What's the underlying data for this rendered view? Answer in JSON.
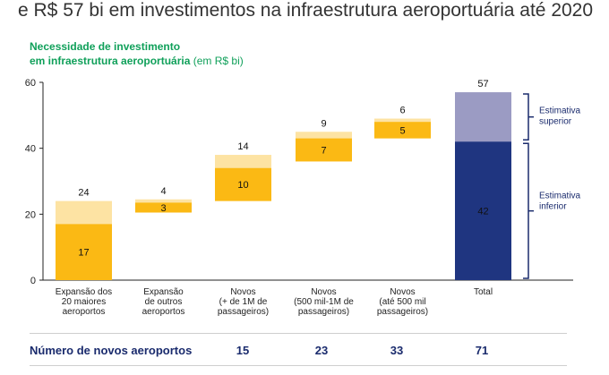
{
  "headline": "e R$ 57 bi em investimentos na infraestrutura aeroportuária até 2020",
  "subtitle_line1": "Necessidade de investimento",
  "subtitle_line2": "em infraestrutura aeroportuária",
  "subtitle_unit": "(em R$ bi)",
  "colors": {
    "light": "#fde3a3",
    "dark": "#fbb914",
    "total_upper": "#9b9bc3",
    "total_lower": "#1f3580",
    "brace": "#1a2b6d",
    "subtitle": "#10a05a"
  },
  "chart_data": {
    "type": "bar",
    "subtype": "waterfall",
    "ylim": [
      0,
      60
    ],
    "yticks": [
      0,
      20,
      40,
      60
    ],
    "categories": [
      [
        "Expansão dos",
        "20 maiores",
        "aeroportos"
      ],
      [
        "Expansão",
        "de outros",
        "aeroportos"
      ],
      [
        "Novos",
        "(+ de 1M de",
        "passageiros)"
      ],
      [
        "Novos",
        "(500 mil-1M de",
        "passageiros)"
      ],
      [
        "Novos",
        "(até 500 mil",
        "passageiros)"
      ],
      [
        "Total"
      ]
    ],
    "series": [
      {
        "name": "Estimativa inferior",
        "values": [
          17,
          3,
          10,
          7,
          5,
          42
        ],
        "labels": [
          "17",
          "3",
          "10",
          "7",
          "5",
          "42"
        ]
      },
      {
        "name": "Estimativa superior",
        "values": [
          24,
          4,
          14,
          9,
          6,
          57
        ],
        "labels": [
          "24",
          "4",
          "14",
          "9",
          "6",
          "57"
        ]
      }
    ],
    "bases_upper": [
      0,
      20.5,
      24,
      36,
      43,
      0
    ],
    "bases_lower": [
      0,
      20.5,
      24,
      36,
      43,
      0
    ],
    "side_labels": {
      "upper": [
        "Estimativa",
        "superior"
      ],
      "lower": [
        "Estimativa",
        "inferior"
      ]
    }
  },
  "footer": {
    "label": "Número de novos aeroportos",
    "values": [
      "15",
      "23",
      "33",
      "71"
    ]
  }
}
